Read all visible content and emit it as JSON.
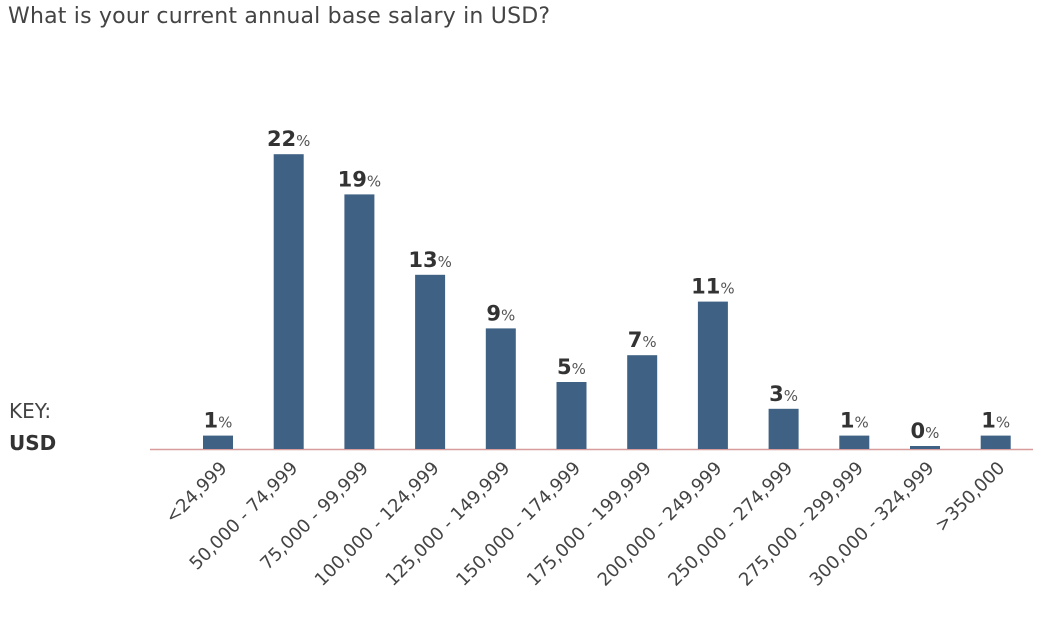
{
  "question": "What is your current annual base salary in USD?",
  "key": {
    "label": "KEY:",
    "value": "USD"
  },
  "chart_data": {
    "type": "bar",
    "title": "What is your current annual base salary in USD?",
    "categories": [
      "<24,999",
      "50,000 - 74,999",
      "75,000 - 99,999",
      "100,000 - 124,999",
      "125,000 - 149,999",
      "150,000 - 174,999",
      "175,000 - 199,999",
      "200,000 - 249,999",
      "250,000 - 274,999",
      "275,000 - 299,999",
      "300,000 - 324,999",
      ">350,000"
    ],
    "values": [
      1,
      22,
      19,
      13,
      9,
      5,
      7,
      11,
      3,
      1,
      0,
      1
    ],
    "value_suffix": "%",
    "ylim": [
      0,
      22
    ],
    "grid": false,
    "bar_color": "#3f6184",
    "baseline_color": "#d89c9c"
  }
}
